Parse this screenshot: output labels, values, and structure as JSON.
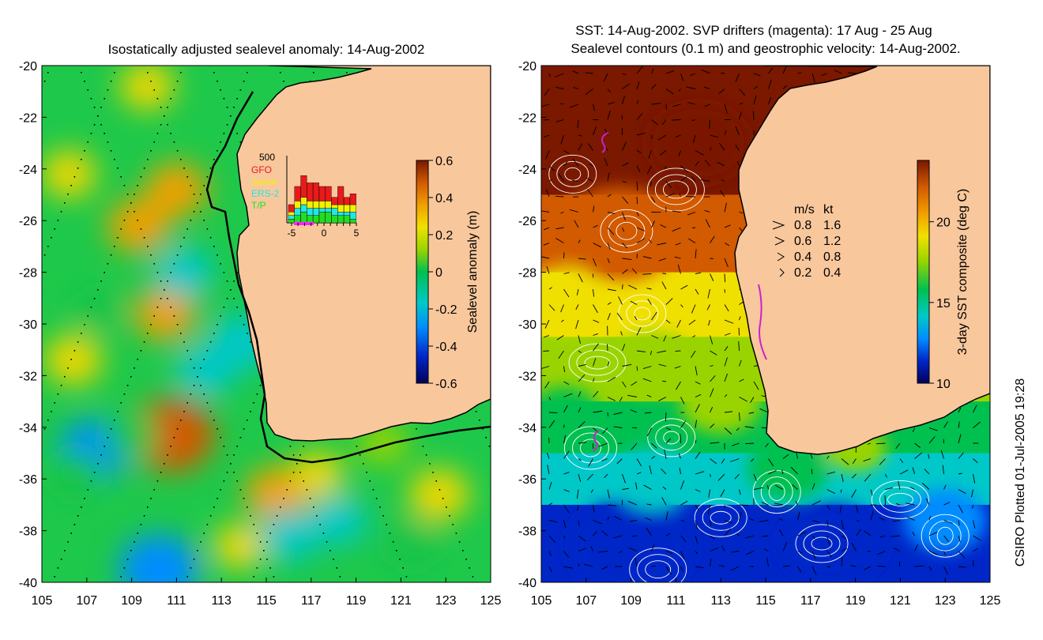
{
  "chart_data": [
    {
      "type": "heatmap",
      "title": "Isostatically adjusted sealevel anomaly: 14-Aug-2002",
      "xlabel": "",
      "ylabel": "",
      "xlim": [
        105,
        125
      ],
      "ylim": [
        -40,
        -20
      ],
      "x_ticks": [
        "105",
        "107",
        "109",
        "111",
        "113",
        "115",
        "117",
        "119",
        "121",
        "123",
        "125"
      ],
      "y_ticks": [
        "-20",
        "-22",
        "-24",
        "-26",
        "-28",
        "-30",
        "-32",
        "-34",
        "-36",
        "-38",
        "-40"
      ],
      "colorbar": {
        "label": "Sealevel anomaly (m)",
        "range": [
          -0.6,
          0.6
        ],
        "ticks": [
          "0.6",
          "0.4",
          "0.2",
          "0",
          "-0.2",
          "-0.4",
          "-0.6"
        ]
      },
      "blobs": [
        {
          "lon": 110.8,
          "lat": -34.3,
          "value": 0.45
        },
        {
          "lon": 110.5,
          "lat": -29.6,
          "value": 0.22
        },
        {
          "lon": 109.3,
          "lat": -26.2,
          "value": 0.22
        },
        {
          "lon": 111.0,
          "lat": -24.8,
          "value": 0.22
        },
        {
          "lon": 106.4,
          "lat": -31.4,
          "value": 0.18
        },
        {
          "lon": 106.2,
          "lat": -24.2,
          "value": 0.15
        },
        {
          "lon": 115.5,
          "lat": -36.6,
          "value": 0.25
        },
        {
          "lon": 122.7,
          "lat": -36.6,
          "value": 0.2
        },
        {
          "lon": 113.8,
          "lat": -38.6,
          "value": 0.12
        },
        {
          "lon": 117.3,
          "lat": -35.8,
          "value": 0.12
        },
        {
          "lon": 120.2,
          "lat": -34.6,
          "value": 0.1
        },
        {
          "lon": 109.7,
          "lat": -20.8,
          "value": 0.15
        },
        {
          "lon": 110.2,
          "lat": -39.5,
          "value": -0.4
        },
        {
          "lon": 107.3,
          "lat": -34.9,
          "value": -0.3
        },
        {
          "lon": 109.0,
          "lat": -34.3,
          "value": -0.15
        },
        {
          "lon": 112.3,
          "lat": -31.8,
          "value": -0.2
        },
        {
          "lon": 113.9,
          "lat": -30.7,
          "value": -0.25
        },
        {
          "lon": 111.3,
          "lat": -28.0,
          "value": -0.2
        },
        {
          "lon": 106.5,
          "lat": -35.8,
          "value": -0.15
        },
        {
          "lon": 116.0,
          "lat": -38.2,
          "value": -0.2
        },
        {
          "lon": 118.2,
          "lat": -37.6,
          "value": -0.18
        },
        {
          "lon": 121.5,
          "lat": -38.5,
          "value": -0.15
        },
        {
          "lon": 107.5,
          "lat": -29.5,
          "value": -0.08
        }
      ],
      "inset": {
        "top_label": "500",
        "legend": [
          "GFO",
          "Jason",
          "ERS-2",
          "T/P"
        ],
        "legend_colors": [
          "#e81a1a",
          "#f2f200",
          "#22e6e6",
          "#22dd22"
        ],
        "x_ticks": [
          "-5",
          "0",
          "5"
        ],
        "days": [
          -5,
          -4,
          -3,
          -2,
          -1,
          0,
          1,
          2,
          3,
          4,
          5
        ],
        "stacks": [
          [
            2,
            1,
            1,
            1
          ],
          [
            4,
            2,
            2,
            2
          ],
          [
            6,
            2,
            2,
            3
          ],
          [
            5,
            2,
            2,
            2
          ],
          [
            5,
            2,
            2,
            2
          ],
          [
            4,
            2,
            1,
            3
          ],
          [
            4,
            2,
            1,
            3
          ],
          [
            2,
            1,
            2,
            2
          ],
          [
            5,
            2,
            1,
            2
          ],
          [
            2,
            2,
            1,
            2
          ],
          [
            3,
            2,
            2,
            1
          ]
        ]
      }
    },
    {
      "type": "heatmap",
      "title": "SST: 14-Aug-2002. SVP drifters (magenta): 17 Aug - 25 Aug",
      "subtitle": "Sealevel contours (0.1 m) and geostrophic velocity: 14-Aug-2002.",
      "xlim": [
        105,
        125
      ],
      "ylim": [
        -40,
        -20
      ],
      "x_ticks": [
        "105",
        "107",
        "109",
        "111",
        "113",
        "115",
        "117",
        "119",
        "121",
        "123",
        "125"
      ],
      "y_ticks": [
        "-20",
        "-22",
        "-24",
        "-26",
        "-28",
        "-30",
        "-32",
        "-34",
        "-36",
        "-38",
        "-40"
      ],
      "colorbar": {
        "label": "3-day SST composite (deg C)",
        "range": [
          10,
          24
        ],
        "ticks": [
          "20",
          "15",
          "10"
        ]
      },
      "velocity_legend": {
        "header": [
          "m/s",
          "kt"
        ],
        "rows": [
          [
            "0.8",
            "1.6"
          ],
          [
            "0.6",
            "1.2"
          ],
          [
            "0.4",
            "0.8"
          ],
          [
            "0.2",
            "0.4"
          ]
        ]
      },
      "sst_zones": [
        {
          "lat_from": -20,
          "lat_to": -25,
          "value": 23
        },
        {
          "lat_from": -25,
          "lat_to": -28,
          "value": 21
        },
        {
          "lat_from": -28,
          "lat_to": -30.5,
          "value": 19
        },
        {
          "lat_from": -30.5,
          "lat_to": -33,
          "value": 17
        },
        {
          "lat_from": -33,
          "lat_to": -35,
          "value": 15.5
        },
        {
          "lat_from": -35,
          "lat_to": -37,
          "value": 13
        },
        {
          "lat_from": -37,
          "lat_to": -40,
          "value": 11
        }
      ]
    }
  ],
  "credit": "CSIRO Plotted 01-Jul-2005 19:28",
  "colors": {
    "land": "#f8c79c",
    "coast": "#000000",
    "contour": "#ffffff",
    "drifter": "#cc22cc"
  }
}
